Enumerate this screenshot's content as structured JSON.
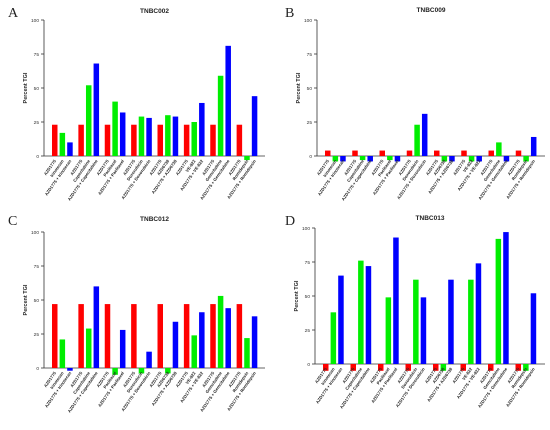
{
  "panels": [
    {
      "letter": "A",
      "title": "TNBC002"
    },
    {
      "letter": "B",
      "title": "TNBC009"
    },
    {
      "letter": "C",
      "title": "TNBC012"
    },
    {
      "letter": "D",
      "title": "TNBC013"
    }
  ],
  "chart_data": [
    {
      "type": "bar",
      "title": "TNBC002",
      "ylabel": "Percent TGI",
      "ylim": [
        0,
        100
      ],
      "yticks": [
        0,
        25,
        50,
        75,
        100
      ],
      "colors": [
        "#ff0000",
        "#00ee00",
        "#0000ff"
      ],
      "categories": [
        "AZD1775 + Irinotecan",
        "AZD1775 + Capecitabine",
        "AZD1775 + Paclitaxel",
        "AZD1775 + Doxorubicin",
        "AZD1775 + AZD6738",
        "AZD1775 + VE-822",
        "AZD1775 + Gemcitabine",
        "AZD1775 + Romidepsin"
      ],
      "tick_labels": [
        [
          "AZD1775",
          "Irinotecan",
          "AZD1775 + Irinotecan"
        ],
        [
          "AZD1775",
          "Capecitabine",
          "AZD1775 + Capecitabine"
        ],
        [
          "AZD1775",
          "Paclitaxel",
          "AZD1775 + Paclitaxel"
        ],
        [
          "AZD1775",
          "Doxorubicin",
          "AZD1775 + Doxorubicin"
        ],
        [
          "AZD1775",
          "AZD6738",
          "AZD1775 + AZD6738"
        ],
        [
          "AZD1775",
          "VE-822",
          "AZD1775 + VE-822"
        ],
        [
          "AZD1775",
          "Gemcitabine",
          "AZD1775 + Gemcitabine"
        ],
        [
          "AZD1775",
          "Romidepsin",
          "AZD1775 + Romidepsin"
        ]
      ],
      "values": [
        [
          23,
          17,
          10
        ],
        [
          23,
          52,
          68
        ],
        [
          23,
          40,
          32
        ],
        [
          23,
          29,
          28
        ],
        [
          23,
          30,
          29
        ],
        [
          23,
          25,
          39
        ],
        [
          23,
          59,
          81
        ],
        [
          23,
          -3,
          44
        ]
      ]
    },
    {
      "type": "bar",
      "title": "TNBC009",
      "ylabel": "Percent TGI",
      "ylim": [
        0,
        100
      ],
      "yticks": [
        0,
        25,
        50,
        75,
        100
      ],
      "colors": [
        "#ff0000",
        "#00ee00",
        "#0000ff"
      ],
      "categories": [
        "AZD1775 + Irinotecan",
        "AZD1775 + Capecitabine",
        "AZD1775 + Paclitaxel",
        "AZD1775 + Doxorubicin",
        "AZD1775 + AZD6738",
        "AZD1775 + VE-822",
        "AZD1775 + Gemcitabine",
        "AZD1775 + Romidepsin"
      ],
      "tick_labels": [
        [
          "AZD1775",
          "Irinotecan",
          "AZD1775 + Irinotecan"
        ],
        [
          "AZD1775",
          "Capecitabine",
          "AZD1775 + Capecitabine"
        ],
        [
          "AZD1775",
          "Paclitaxel",
          "AZD1775 + Paclitaxel"
        ],
        [
          "AZD1775",
          "Doxorubicin",
          "AZD1775 + Doxorubicin"
        ],
        [
          "AZD1775",
          "AZD6738",
          "AZD1775 + AZD6738"
        ],
        [
          "AZD1775",
          "VE-822",
          "AZD1775 + VE-822"
        ],
        [
          "AZD1775",
          "Gemcitabine",
          "AZD1775 + Gemcitabine"
        ],
        [
          "AZD1775",
          "Romidepsin",
          "AZD1775 + Romidepsin"
        ]
      ],
      "values": [
        [
          4,
          -4,
          -4
        ],
        [
          4,
          -3,
          -4
        ],
        [
          4,
          -3,
          -4
        ],
        [
          4,
          23,
          31
        ],
        [
          4,
          -4,
          -4
        ],
        [
          4,
          -4,
          -4
        ],
        [
          4,
          10,
          -4
        ],
        [
          4,
          -4,
          14
        ]
      ]
    },
    {
      "type": "bar",
      "title": "TNBC012",
      "ylabel": "Percent TGI",
      "ylim": [
        0,
        100
      ],
      "yticks": [
        0,
        25,
        50,
        75,
        100
      ],
      "colors": [
        "#ff0000",
        "#00ee00",
        "#0000ff"
      ],
      "categories": [
        "AZD1775 + Irinotecan",
        "AZD1775 + Capecitabine",
        "AZD1775 + Paclitaxel",
        "AZD1775 + Doxorubicin",
        "AZD1775 + AZD6738",
        "AZD1775 + VE-822",
        "AZD1775 + Gemcitabine",
        "AZD1775 + Romidepsin"
      ],
      "tick_labels": [
        [
          "AZD1775",
          "Irinotecan",
          "AZD1775 + Irinotecan"
        ],
        [
          "AZD1775",
          "Capecitabine",
          "AZD1775 + Capecitabine"
        ],
        [
          "AZD1775",
          "Paclitaxel",
          "AZD1775 + Paclitaxel"
        ],
        [
          "AZD1775",
          "Doxorubicin",
          "AZD1775 + Doxorubicin"
        ],
        [
          "AZD1775",
          "AZD6738",
          "AZD1775 + AZD6738"
        ],
        [
          "AZD1775",
          "VE-822",
          "AZD1775 + VE-822"
        ],
        [
          "AZD1775",
          "Gemcitabine",
          "AZD1775 + Gemcitabine"
        ],
        [
          "AZD1775",
          "Romidepsin",
          "AZD1775 + Romidepsin"
        ]
      ],
      "values": [
        [
          47,
          21,
          -2
        ],
        [
          47,
          29,
          60
        ],
        [
          47,
          -5,
          28
        ],
        [
          47,
          -4,
          12
        ],
        [
          47,
          -4,
          34
        ],
        [
          47,
          24,
          41
        ],
        [
          47,
          53,
          44
        ],
        [
          47,
          22,
          38
        ]
      ]
    },
    {
      "type": "bar",
      "title": "TNBC013",
      "ylabel": "Percent TGI",
      "ylim": [
        0,
        100
      ],
      "yticks": [
        0,
        25,
        50,
        75,
        100
      ],
      "colors": [
        "#ff0000",
        "#00ee00",
        "#0000ff"
      ],
      "categories": [
        "AZD1775 + Irinotecan",
        "AZD1775 + Capecitabine",
        "AZD1775 + Paclitaxel",
        "AZD1775 + Doxorubicin",
        "AZD1775 + AZD6738",
        "AZD1775 + VE-822",
        "AZD1775 + Gemcitabine",
        "AZD1775 + Romidepsin"
      ],
      "tick_labels": [
        [
          "AZD1775",
          "Irinotecan",
          "AZD1775 + Irinotecan"
        ],
        [
          "AZD1775",
          "Capecitabine",
          "AZD1775 + Capecitabine"
        ],
        [
          "AZD1775",
          "Paclitaxel",
          "AZD1775 + Paclitaxel"
        ],
        [
          "AZD1775",
          "Doxorubicin",
          "AZD1775 + Doxorubicin"
        ],
        [
          "AZD1775",
          "AZD6738",
          "AZD1775 + AZD6738"
        ],
        [
          "AZD1775",
          "VE-822",
          "AZD1775 + VE-822"
        ],
        [
          "AZD1775",
          "Gemcitabine",
          "AZD1775 + Gemcitabine"
        ],
        [
          "AZD1775",
          "Romidepsin",
          "AZD1775 + Romidepsin"
        ]
      ],
      "values": [
        [
          -5,
          38,
          65
        ],
        [
          -5,
          76,
          72
        ],
        [
          -5,
          49,
          93
        ],
        [
          -5,
          62,
          49
        ],
        [
          -5,
          -5,
          62
        ],
        [
          -5,
          62,
          74
        ],
        [
          -5,
          92,
          97
        ],
        [
          -5,
          -5,
          52
        ]
      ]
    }
  ]
}
